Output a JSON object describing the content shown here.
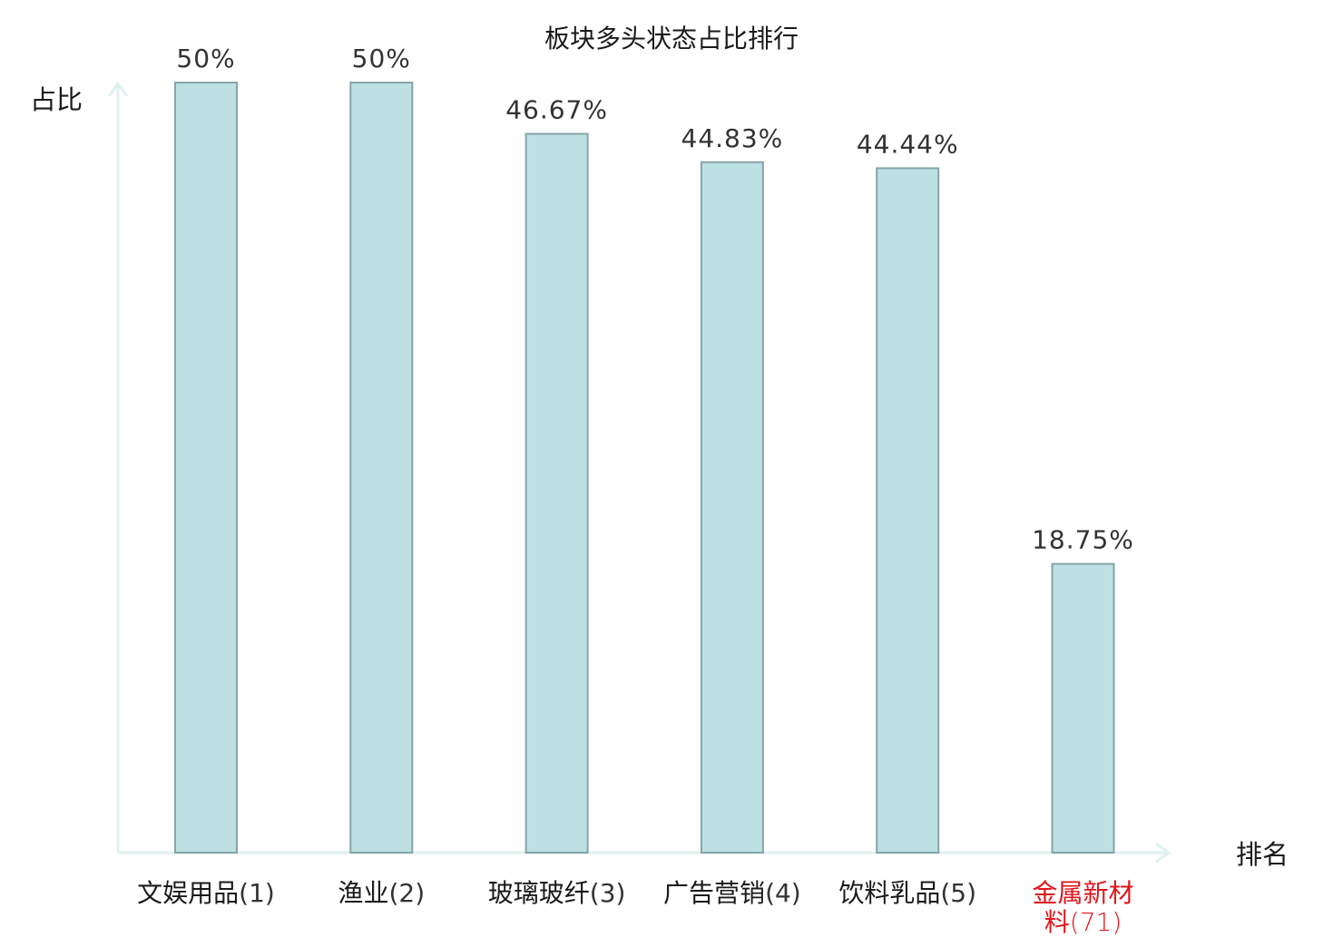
{
  "chart_data": {
    "type": "bar",
    "title": "板块多头状态占比排行",
    "ylabel": "占比",
    "xlabel": "排名",
    "categories": [
      {
        "name": "文娱用品",
        "rank": "(1)",
        "highlight": false
      },
      {
        "name": "渔业",
        "rank": "(2)",
        "highlight": false
      },
      {
        "name": "玻璃玻纤",
        "rank": "(3)",
        "highlight": false
      },
      {
        "name": "广告营销",
        "rank": "(4)",
        "highlight": false
      },
      {
        "name": "饮料乳品",
        "rank": "(5)",
        "highlight": false
      },
      {
        "name": "金属新材料",
        "rank": "(71)",
        "highlight": true
      }
    ],
    "values": [
      50,
      50,
      46.67,
      44.83,
      44.44,
      18.75
    ],
    "value_labels": [
      "50%",
      "50%",
      "46.67%",
      "44.83%",
      "44.44%",
      "18.75%"
    ],
    "ylim": [
      0,
      50
    ],
    "grid": false,
    "legend": "none",
    "colors": {
      "bar_fill": "#bde0e3",
      "bar_stroke": "#86a5a8",
      "axis": "#dff2ef",
      "text": "#1a1a1a",
      "value_text": "#333333",
      "highlight_text": "#e0161b"
    }
  }
}
